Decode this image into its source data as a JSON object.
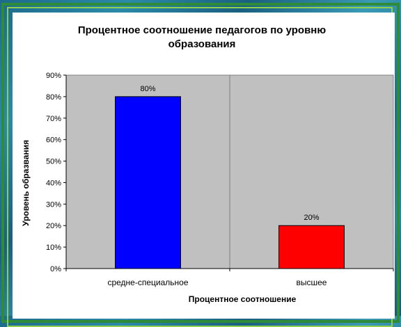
{
  "colors": {
    "frame_outer": "#2e8b3a",
    "frame_inner": "#8fd14f",
    "plot_bg": "#c0c0c0"
  },
  "chart_data": {
    "type": "bar",
    "title_line1": "Процентное соотношение педагогов по уровню",
    "title_line2": "образования",
    "xlabel": "Процентное соотношение",
    "ylabel": "Уровень образвания",
    "categories": [
      "средне-специальное",
      "высшее"
    ],
    "values": [
      80,
      20
    ],
    "data_labels": [
      "80%",
      "20%"
    ],
    "bar_colors": [
      "#0000ff",
      "#ff0000"
    ],
    "ylim": [
      0,
      90
    ],
    "yticks": [
      0,
      10,
      20,
      30,
      40,
      50,
      60,
      70,
      80,
      90
    ],
    "ytick_labels": [
      "0%",
      "10%",
      "20%",
      "30%",
      "40%",
      "50%",
      "60%",
      "70%",
      "80%",
      "90%"
    ],
    "grid": false,
    "legend": "none"
  }
}
